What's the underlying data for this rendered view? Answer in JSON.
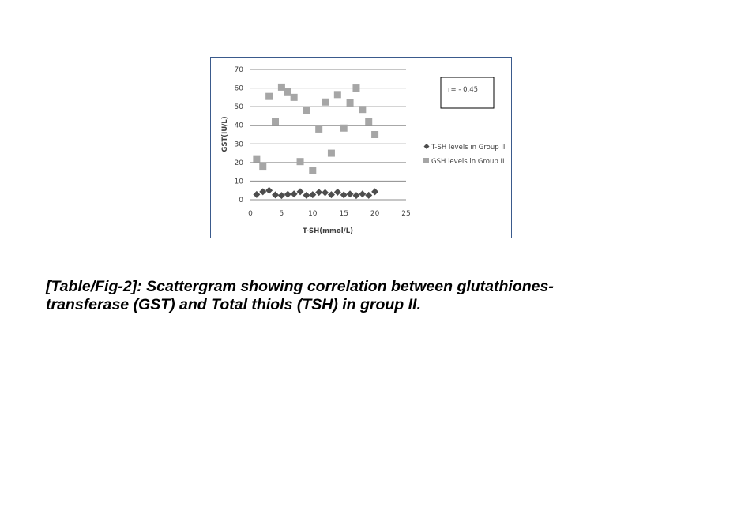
{
  "chart_data": {
    "type": "scatter",
    "xlabel": "T-SH(mmol/L)",
    "ylabel": "GST(IU/L)",
    "xlim": [
      0,
      25
    ],
    "ylim": [
      0,
      70
    ],
    "xticks": [
      "0",
      "5",
      "10",
      "15",
      "20",
      "25"
    ],
    "yticks": [
      "0",
      "10",
      "20",
      "30",
      "40",
      "50",
      "60",
      "70"
    ],
    "grid": "horizontal",
    "legend_position": "right",
    "annotation": "r= - 0.45",
    "series": [
      {
        "name": "T-SH levels in Group II",
        "marker": "diamond",
        "color": "#4d4d4d",
        "x": [
          1,
          2,
          3,
          4,
          5,
          6,
          7,
          8,
          9,
          10,
          11,
          12,
          13,
          14,
          15,
          16,
          17,
          18,
          19,
          20
        ],
        "y": [
          2.8,
          4.3,
          5.0,
          2.6,
          2.3,
          2.9,
          3.1,
          4.3,
          2.4,
          2.7,
          4.0,
          3.8,
          2.7,
          4.1,
          2.6,
          3.1,
          2.3,
          3.1,
          2.4,
          4.3
        ]
      },
      {
        "name": "GSH levels in Group II",
        "marker": "square",
        "color": "#a6a6a6",
        "x": [
          1,
          2,
          3,
          4,
          5,
          6,
          7,
          8,
          9,
          10,
          11,
          12,
          13,
          14,
          15,
          16,
          17,
          18,
          19,
          20
        ],
        "y": [
          22,
          18,
          55.5,
          42,
          60.5,
          58,
          55,
          20.5,
          48,
          15.5,
          38,
          52.5,
          25,
          56.5,
          38.5,
          52,
          60,
          48.5,
          42,
          35
        ]
      }
    ]
  },
  "caption": {
    "line1": "[Table/Fig-2]: Scattergram showing correlation between glutathiones-",
    "line2": "transferase (GST) and Total thiols (TSH) in group II."
  },
  "colors": {
    "frame_border": "#3a5a8c",
    "gridline": "#8c8c8c"
  }
}
